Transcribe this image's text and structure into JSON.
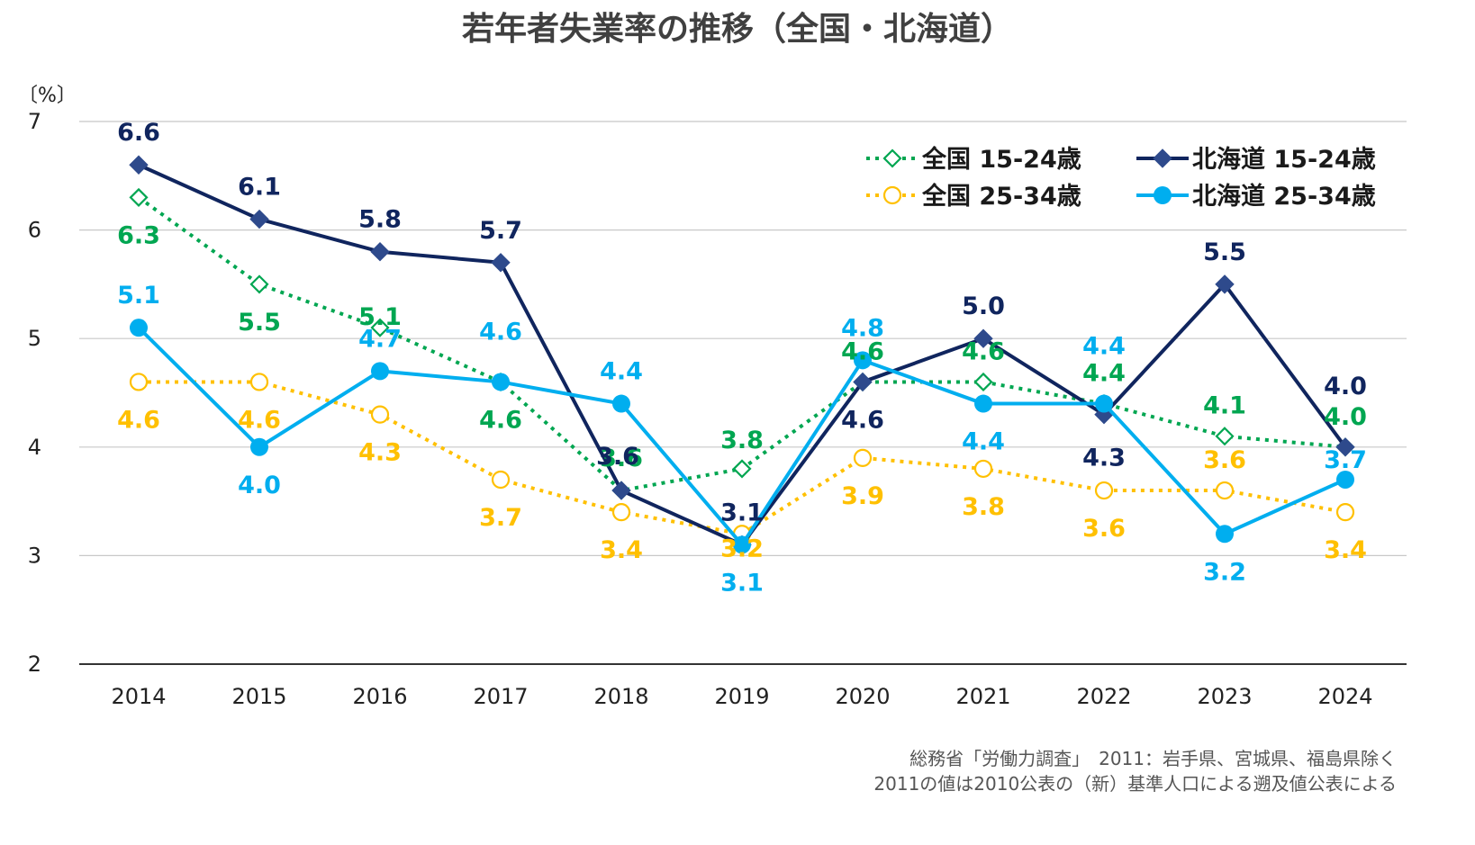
{
  "chart_data": {
    "type": "line",
    "title": "若年者失業率の推移（全国・北海道）",
    "y_unit_label": "〔%〕",
    "ylim": [
      2,
      7
    ],
    "y_ticks": [
      2,
      3,
      4,
      5,
      6,
      7
    ],
    "x": [
      "2014",
      "2015",
      "2016",
      "2017",
      "2018",
      "2019",
      "2020",
      "2021",
      "2022",
      "2023",
      "2024"
    ],
    "grid": true,
    "legend_position": "top-right",
    "series": [
      {
        "key": "nat_15_24",
        "name": "全国 15-24歳",
        "color": "#00A651",
        "style": "dotted",
        "marker": "diamond-open",
        "values": [
          6.3,
          5.5,
          5.1,
          4.6,
          3.6,
          3.8,
          4.6,
          4.6,
          4.4,
          4.1,
          4.0
        ],
        "labels": [
          "6.3",
          "5.5",
          "5.1",
          "4.6",
          "3.6",
          "3.8",
          "4.6",
          "4.6",
          "4.4",
          "4.1",
          "4.0"
        ]
      },
      {
        "key": "hok_15_24",
        "name": "北海道 15-24歳",
        "color": "#10255E",
        "marker_color": "#2E4A8C",
        "style": "solid",
        "marker": "diamond-filled",
        "values": [
          6.6,
          6.1,
          5.8,
          5.7,
          3.6,
          3.1,
          4.6,
          5.0,
          4.3,
          5.5,
          4.0
        ],
        "labels": [
          "6.6",
          "6.1",
          "5.8",
          "5.7",
          "3.6",
          "3.1",
          "4.6",
          "5.0",
          "4.3",
          "5.5",
          "4.0"
        ]
      },
      {
        "key": "nat_25_34",
        "name": "全国 25-34歳",
        "color": "#FFC000",
        "style": "dotted",
        "marker": "circle-open",
        "values": [
          4.6,
          4.6,
          4.3,
          3.7,
          3.4,
          3.2,
          3.9,
          3.8,
          3.6,
          3.6,
          3.4
        ],
        "labels": [
          "4.6",
          "4.6",
          "4.3",
          "3.7",
          "3.4",
          "3.2",
          "3.9",
          "3.8",
          "3.6",
          "3.6",
          "3.4"
        ]
      },
      {
        "key": "hok_25_34",
        "name": "北海道 25-34歳",
        "color": "#00AEEF",
        "style": "solid",
        "marker": "circle-filled",
        "values": [
          5.1,
          4.0,
          4.7,
          4.6,
          4.4,
          3.1,
          4.8,
          4.4,
          4.4,
          3.2,
          3.7
        ],
        "labels": [
          "5.1",
          "4.0",
          "4.7",
          "4.6",
          "4.4",
          "3.1",
          "4.8",
          "4.4",
          "4.4",
          "3.2",
          "3.7"
        ]
      }
    ],
    "legend_order": [
      "nat_15_24",
      "hok_15_24",
      "nat_25_34",
      "hok_25_34"
    ],
    "source_lines": [
      "総務省「労働力調査」　2011：岩手県、宮城県、福島県除く",
      "2011の値は2010公表の（新）基準人口による遡及値公表による"
    ]
  }
}
